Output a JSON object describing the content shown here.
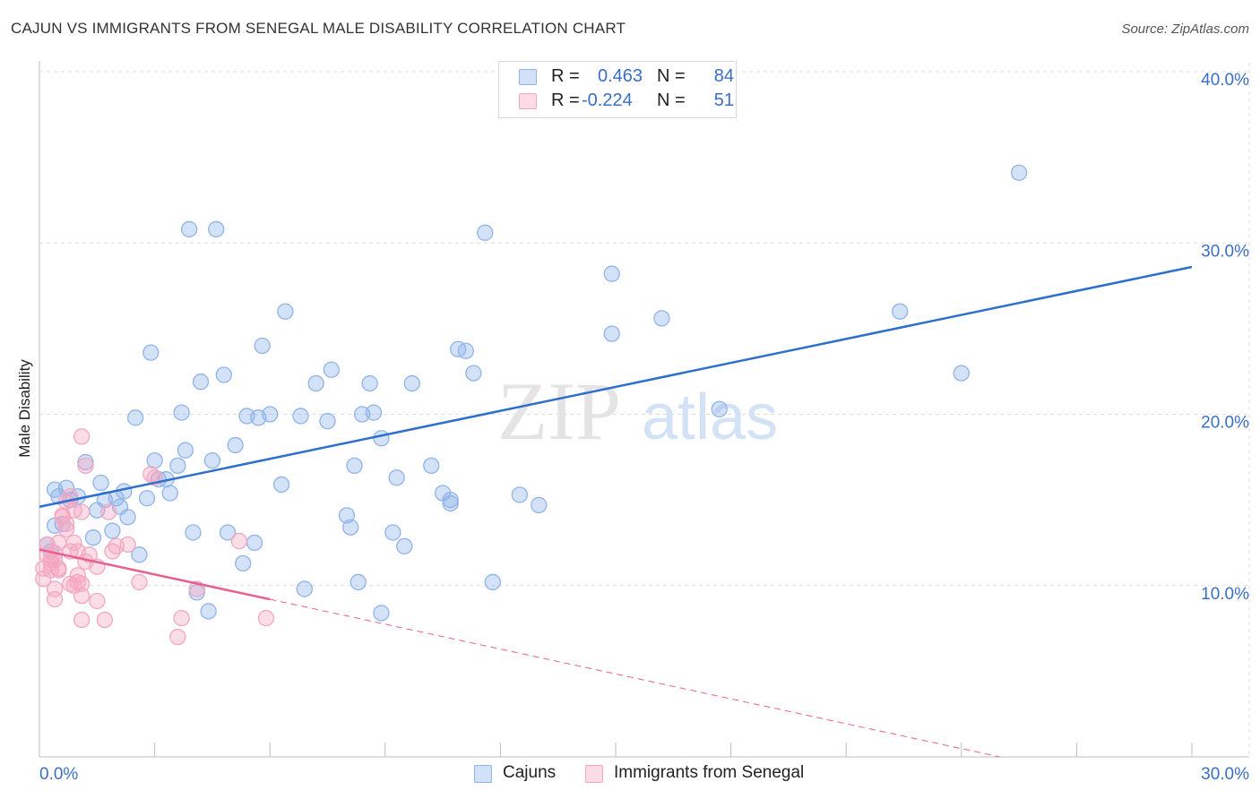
{
  "title": "CAJUN VS IMMIGRANTS FROM SENEGAL MALE DISABILITY CORRELATION CHART",
  "source": "Source: ZipAtlas.com",
  "watermark": {
    "zip": "ZIP",
    "atlas": "atlas"
  },
  "legend": {
    "series1": {
      "r_label": "R =",
      "r_value": "0.463",
      "n_label": "N =",
      "n_value": "84",
      "color": "#8fb4ea"
    },
    "series2": {
      "r_label": "R =",
      "r_value": "-0.224",
      "n_label": "N =",
      "n_value": "51",
      "color": "#f4a6c0"
    }
  },
  "bottom_legend": {
    "series1": "Cajuns",
    "series2": "Immigrants from Senegal"
  },
  "chart_data": {
    "type": "scatter",
    "title": "CAJUN VS IMMIGRANTS FROM SENEGAL MALE DISABILITY CORRELATION CHART",
    "xlabel": "",
    "ylabel": "Male Disability",
    "xlim": [
      0,
      30
    ],
    "ylim": [
      0,
      40
    ],
    "x_tick_labels": [
      "0.0%",
      "30.0%"
    ],
    "y_ticks": [
      10,
      20,
      30,
      40
    ],
    "y_tick_labels": [
      "10.0%",
      "20.0%",
      "30.0%",
      "40.0%"
    ],
    "grid": true,
    "series": [
      {
        "name": "Cajuns",
        "color": "#8fb4ea",
        "line_color": "#2d6fcc",
        "trend": {
          "x": [
            0,
            30
          ],
          "y": [
            14.6,
            28.6
          ],
          "dashed_extension": false
        },
        "points": [
          [
            0.2,
            12.4
          ],
          [
            0.3,
            12.0
          ],
          [
            0.4,
            13.5
          ],
          [
            0.4,
            15.6
          ],
          [
            0.5,
            15.2
          ],
          [
            0.6,
            13.6
          ],
          [
            0.7,
            15.7
          ],
          [
            0.8,
            15.0
          ],
          [
            1.0,
            15.2
          ],
          [
            1.2,
            17.2
          ],
          [
            1.4,
            12.8
          ],
          [
            1.5,
            14.4
          ],
          [
            1.6,
            16.0
          ],
          [
            1.7,
            15.0
          ],
          [
            1.9,
            13.2
          ],
          [
            2.0,
            15.1
          ],
          [
            2.1,
            14.6
          ],
          [
            2.2,
            15.5
          ],
          [
            2.3,
            14.0
          ],
          [
            2.5,
            19.8
          ],
          [
            2.6,
            11.8
          ],
          [
            2.8,
            15.1
          ],
          [
            2.9,
            23.6
          ],
          [
            3.0,
            17.3
          ],
          [
            3.1,
            16.2
          ],
          [
            3.3,
            16.2
          ],
          [
            3.4,
            15.4
          ],
          [
            3.6,
            17.0
          ],
          [
            3.7,
            20.1
          ],
          [
            3.8,
            17.9
          ],
          [
            3.9,
            30.8
          ],
          [
            4.0,
            13.1
          ],
          [
            4.1,
            9.6
          ],
          [
            4.2,
            21.9
          ],
          [
            4.4,
            8.5
          ],
          [
            4.5,
            17.3
          ],
          [
            4.6,
            30.8
          ],
          [
            4.8,
            22.3
          ],
          [
            4.9,
            13.1
          ],
          [
            5.1,
            18.2
          ],
          [
            5.3,
            11.3
          ],
          [
            5.4,
            19.9
          ],
          [
            5.6,
            12.5
          ],
          [
            5.7,
            19.8
          ],
          [
            5.8,
            24.0
          ],
          [
            6.0,
            20.0
          ],
          [
            6.3,
            15.9
          ],
          [
            6.4,
            26.0
          ],
          [
            6.8,
            19.9
          ],
          [
            6.9,
            9.8
          ],
          [
            7.2,
            21.8
          ],
          [
            7.5,
            19.6
          ],
          [
            7.6,
            22.6
          ],
          [
            8.0,
            14.1
          ],
          [
            8.1,
            13.4
          ],
          [
            8.2,
            17.0
          ],
          [
            8.3,
            10.2
          ],
          [
            8.4,
            20.0
          ],
          [
            8.6,
            21.8
          ],
          [
            8.7,
            20.1
          ],
          [
            8.9,
            18.6
          ],
          [
            8.9,
            8.4
          ],
          [
            9.2,
            13.1
          ],
          [
            9.3,
            16.3
          ],
          [
            9.5,
            12.3
          ],
          [
            9.7,
            21.8
          ],
          [
            10.2,
            17.0
          ],
          [
            10.5,
            15.4
          ],
          [
            10.7,
            15.0
          ],
          [
            10.7,
            14.8
          ],
          [
            10.9,
            23.8
          ],
          [
            11.1,
            23.7
          ],
          [
            11.3,
            22.4
          ],
          [
            11.6,
            30.6
          ],
          [
            11.8,
            10.2
          ],
          [
            12.5,
            15.3
          ],
          [
            13.0,
            14.7
          ],
          [
            14.9,
            28.2
          ],
          [
            14.9,
            24.7
          ],
          [
            16.2,
            25.6
          ],
          [
            17.7,
            20.3
          ],
          [
            22.4,
            26.0
          ],
          [
            24.0,
            22.4
          ],
          [
            25.5,
            34.1
          ]
        ]
      },
      {
        "name": "Immigrants from Senegal",
        "color": "#f4a6c0",
        "line_color": "#e8608f",
        "trend": {
          "x": [
            0,
            6
          ],
          "y": [
            12.1,
            9.2
          ],
          "dashed_to": [
            25.0,
            0
          ]
        },
        "points": [
          [
            0.1,
            11.0
          ],
          [
            0.1,
            10.4
          ],
          [
            0.2,
            11.8
          ],
          [
            0.2,
            12.4
          ],
          [
            0.3,
            11.5
          ],
          [
            0.3,
            11.3
          ],
          [
            0.4,
            11.5
          ],
          [
            0.4,
            11.9
          ],
          [
            0.4,
            9.8
          ],
          [
            0.4,
            9.2
          ],
          [
            0.5,
            11.0
          ],
          [
            0.5,
            10.9
          ],
          [
            0.5,
            12.5
          ],
          [
            0.6,
            14.1
          ],
          [
            0.7,
            13.3
          ],
          [
            0.7,
            13.6
          ],
          [
            0.7,
            14.9
          ],
          [
            0.8,
            15.2
          ],
          [
            0.8,
            12.0
          ],
          [
            0.8,
            10.1
          ],
          [
            0.9,
            12.5
          ],
          [
            0.9,
            10.0
          ],
          [
            0.9,
            14.4
          ],
          [
            1.0,
            12.0
          ],
          [
            1.0,
            10.2
          ],
          [
            1.0,
            10.6
          ],
          [
            1.1,
            9.4
          ],
          [
            1.1,
            8.0
          ],
          [
            1.1,
            10.1
          ],
          [
            1.1,
            14.3
          ],
          [
            1.1,
            18.7
          ],
          [
            1.2,
            17.0
          ],
          [
            1.2,
            11.4
          ],
          [
            1.3,
            11.8
          ],
          [
            1.5,
            11.1
          ],
          [
            1.5,
            9.1
          ],
          [
            1.7,
            8.0
          ],
          [
            1.8,
            14.3
          ],
          [
            1.9,
            12.0
          ],
          [
            2.0,
            12.3
          ],
          [
            2.3,
            12.4
          ],
          [
            2.6,
            10.2
          ],
          [
            2.9,
            16.5
          ],
          [
            3.0,
            16.3
          ],
          [
            3.6,
            7.0
          ],
          [
            3.7,
            8.1
          ],
          [
            4.1,
            9.8
          ],
          [
            5.2,
            12.6
          ],
          [
            5.9,
            8.1
          ],
          [
            0.6,
            14.0
          ],
          [
            0.3,
            10.9
          ]
        ]
      }
    ]
  }
}
